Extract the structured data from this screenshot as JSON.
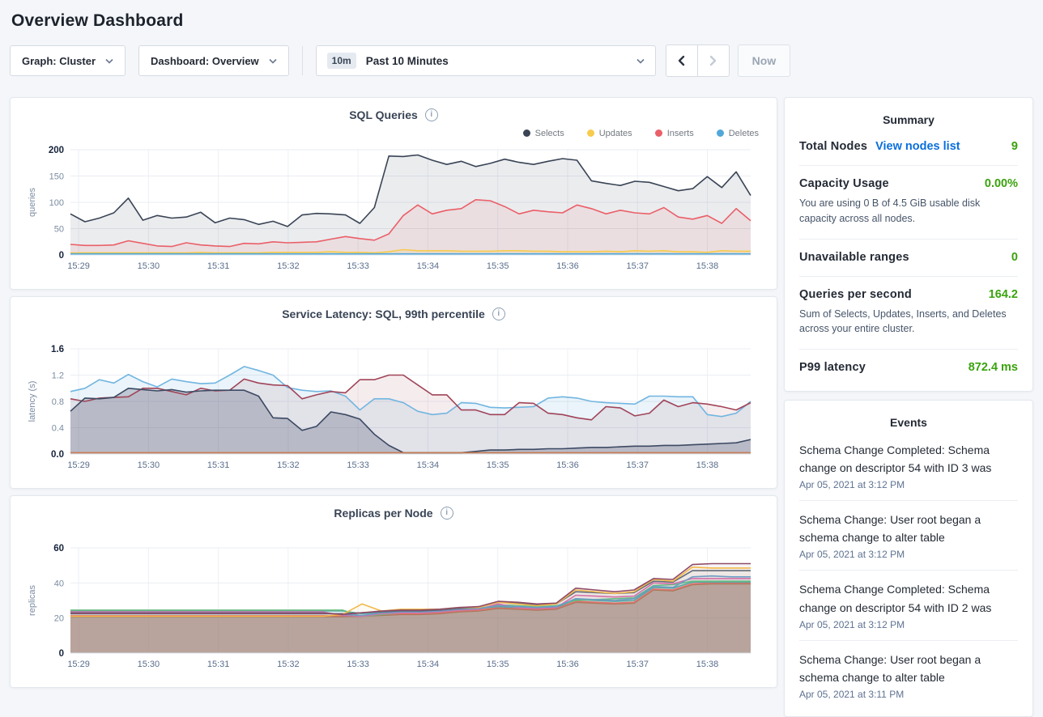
{
  "page_title": "Overview Dashboard",
  "toolbar": {
    "graph_dropdown": "Graph: Cluster",
    "dashboard_dropdown": "Dashboard: Overview",
    "time_badge": "10m",
    "time_label": "Past 10 Minutes",
    "now_label": "Now"
  },
  "colors": {
    "value_green": "#3aa30d",
    "link_blue": "#0a6fdb",
    "selects": "#394455",
    "updates": "#f7cb4d",
    "inserts": "#ea5f68",
    "deletes": "#52a7d9"
  },
  "summary": {
    "title": "Summary",
    "rows": [
      {
        "label": "Total Nodes",
        "link": "View nodes list",
        "value": "9"
      },
      {
        "label": "Capacity Usage",
        "value": "0.00%",
        "subtext": "You are using 0 B of 4.5 GiB usable disk capacity across all nodes."
      },
      {
        "label": "Unavailable ranges",
        "value": "0"
      },
      {
        "label": "Queries per second",
        "value": "164.2",
        "subtext": "Sum of Selects, Updates, Inserts, and Deletes across your entire cluster."
      },
      {
        "label": "P99 latency",
        "value": "872.4 ms"
      }
    ]
  },
  "events": {
    "title": "Events",
    "items": [
      {
        "message": "Schema Change Completed: Schema change on descriptor 54 with ID 3 was",
        "timestamp": "Apr 05, 2021 at 3:12 PM"
      },
      {
        "message": "Schema Change: User root began a schema change to alter table",
        "timestamp": "Apr 05, 2021 at 3:12 PM"
      },
      {
        "message": "Schema Change Completed: Schema change on descriptor 54 with ID 2 was",
        "timestamp": "Apr 05, 2021 at 3:12 PM"
      },
      {
        "message": "Schema Change: User root began a schema change to alter table",
        "timestamp": "Apr 05, 2021 at 3:11 PM"
      }
    ]
  },
  "chart_data": [
    {
      "type": "line",
      "title": "SQL Queries",
      "ylabel": "queries",
      "ylim": [
        0,
        200
      ],
      "yticks": [
        "0",
        "50",
        "100",
        "150",
        "200"
      ],
      "x_ticklabels": [
        "15:29",
        "15:30",
        "15:31",
        "15:32",
        "15:33",
        "15:34",
        "15:35",
        "15:36",
        "15:37",
        "15:38"
      ],
      "legend_position": "top-right",
      "grid": true,
      "series": [
        {
          "name": "Selects",
          "color": "#394455",
          "fill": "rgba(57,68,85,0.10)",
          "values": [
            78,
            63,
            70,
            80,
            108,
            66,
            75,
            70,
            72,
            81,
            61,
            70,
            67,
            58,
            64,
            54,
            76,
            79,
            78,
            76,
            60,
            90,
            188,
            187,
            190,
            180,
            172,
            178,
            168,
            174,
            182,
            176,
            172,
            178,
            183,
            180,
            141,
            136,
            132,
            140,
            138,
            130,
            122,
            126,
            149,
            128,
            158,
            113
          ]
        },
        {
          "name": "Inserts",
          "color": "#ea5f68",
          "fill": "rgba(234,95,104,0.10)",
          "values": [
            20,
            18,
            18,
            19,
            27,
            22,
            17,
            16,
            23,
            19,
            17,
            16,
            22,
            21,
            25,
            23,
            24,
            25,
            30,
            35,
            31,
            28,
            40,
            75,
            95,
            78,
            85,
            88,
            105,
            103,
            92,
            78,
            85,
            82,
            80,
            95,
            88,
            78,
            85,
            80,
            78,
            90,
            72,
            68,
            75,
            60,
            88,
            65
          ]
        },
        {
          "name": "Updates",
          "color": "#f7cb4d",
          "fill": "rgba(247,203,77,0.14)",
          "values": [
            4,
            4,
            4,
            4,
            4,
            4,
            4,
            4,
            4,
            5,
            4,
            4,
            4,
            4,
            5,
            5,
            5,
            5,
            6,
            5,
            5,
            4,
            6,
            10,
            8,
            8,
            8,
            7,
            7,
            7,
            8,
            8,
            7,
            7,
            6,
            6,
            6,
            7,
            6,
            8,
            7,
            8,
            6,
            6,
            5,
            8,
            7,
            7
          ]
        },
        {
          "name": "Deletes",
          "color": "#52a7d9",
          "fill": null,
          "values": [
            2,
            2,
            2,
            2,
            2,
            2,
            2,
            2,
            2,
            2,
            2,
            2,
            2,
            2,
            2,
            2,
            2,
            2,
            2,
            2,
            2,
            2,
            2,
            2,
            2,
            2,
            2,
            2,
            2,
            2,
            2,
            2,
            2,
            2,
            2,
            2,
            2,
            2,
            2,
            2,
            2,
            2,
            2,
            2,
            2,
            2,
            2,
            2
          ]
        }
      ],
      "legend": [
        "Selects",
        "Updates",
        "Inserts",
        "Deletes"
      ],
      "legend_colors": [
        "#394455",
        "#f7cb4d",
        "#ea5f68",
        "#52a7d9"
      ]
    },
    {
      "type": "line",
      "title": "Service Latency: SQL, 99th percentile",
      "ylabel": "latency (s)",
      "ylim": [
        0,
        1.6
      ],
      "yticks": [
        "0.0",
        "0.4",
        "0.8",
        "1.2",
        "1.6"
      ],
      "x_ticklabels": [
        "15:29",
        "15:30",
        "15:31",
        "15:32",
        "15:33",
        "15:34",
        "15:35",
        "15:36",
        "15:37",
        "15:38"
      ],
      "grid": true,
      "series": [
        {
          "color": "#71b5e0",
          "fill": "rgba(113,181,224,0.15)",
          "values": [
            0.95,
            1.0,
            1.13,
            1.08,
            1.21,
            1.1,
            1.02,
            1.14,
            1.1,
            1.07,
            1.08,
            1.2,
            1.33,
            1.27,
            1.2,
            1.01,
            0.97,
            0.95,
            0.96,
            0.88,
            0.67,
            0.84,
            0.84,
            0.78,
            0.65,
            0.6,
            0.62,
            0.78,
            0.77,
            0.71,
            0.7,
            0.71,
            0.72,
            0.85,
            0.87,
            0.85,
            0.8,
            0.78,
            0.77,
            0.76,
            0.88,
            0.88,
            0.87,
            0.87,
            0.6,
            0.57,
            0.62,
            0.8
          ]
        },
        {
          "color": "#a04458",
          "fill": "rgba(160,68,88,0.10)",
          "values": [
            0.84,
            0.8,
            0.85,
            0.86,
            0.87,
            1.0,
            1.0,
            0.95,
            0.9,
            1.0,
            0.96,
            0.97,
            1.14,
            1.08,
            1.05,
            1.04,
            0.84,
            0.9,
            0.95,
            0.93,
            1.13,
            1.13,
            1.2,
            1.2,
            1.05,
            0.9,
            0.9,
            0.67,
            0.67,
            0.6,
            0.6,
            0.78,
            0.77,
            0.62,
            0.6,
            0.55,
            0.52,
            0.72,
            0.7,
            0.58,
            0.62,
            0.82,
            0.72,
            0.78,
            0.76,
            0.72,
            0.67,
            0.78
          ]
        },
        {
          "color": "#3c4a63",
          "fill": "rgba(80,84,110,0.28)",
          "values": [
            0.65,
            0.85,
            0.84,
            0.86,
            1.0,
            0.98,
            0.96,
            0.98,
            0.94,
            0.96,
            0.97,
            0.97,
            0.97,
            0.88,
            0.55,
            0.54,
            0.36,
            0.42,
            0.64,
            0.6,
            0.53,
            0.3,
            0.13,
            0.02,
            0.02,
            0.02,
            0.02,
            0.02,
            0.04,
            0.06,
            0.06,
            0.07,
            0.07,
            0.08,
            0.08,
            0.09,
            0.1,
            0.1,
            0.11,
            0.12,
            0.12,
            0.13,
            0.13,
            0.14,
            0.15,
            0.16,
            0.17,
            0.22
          ]
        },
        {
          "color": "#c97b50",
          "fill": null,
          "values": [
            0.02,
            0.02,
            0.02,
            0.02,
            0.02,
            0.02,
            0.02,
            0.02,
            0.02,
            0.02,
            0.02,
            0.02,
            0.02,
            0.02,
            0.02,
            0.02,
            0.02,
            0.02,
            0.02,
            0.02,
            0.02,
            0.02,
            0.02,
            0.02,
            0.02,
            0.02,
            0.02,
            0.02,
            0.02,
            0.02,
            0.02,
            0.02,
            0.02,
            0.02,
            0.02,
            0.02,
            0.02,
            0.02,
            0.02,
            0.02,
            0.02,
            0.02,
            0.02,
            0.02,
            0.02,
            0.02,
            0.02,
            0.02
          ]
        }
      ]
    },
    {
      "type": "line",
      "title": "Replicas per Node",
      "ylabel": "replicas",
      "ylim": [
        0,
        60
      ],
      "yticks": [
        "0",
        "20",
        "40",
        "60"
      ],
      "x_ticklabels": [
        "15:29",
        "15:30",
        "15:31",
        "15:32",
        "15:33",
        "15:34",
        "15:35",
        "15:36",
        "15:37",
        "15:38"
      ],
      "grid": true,
      "series": [
        {
          "color": "#a8795a",
          "fill": "rgba(166,118,96,0.50)",
          "values": [
            20.8,
            20.8,
            20.8,
            20.8,
            20.8,
            20.8,
            20.8,
            20.8,
            20.8,
            20.8,
            20.8,
            20.8,
            20.8,
            20.8,
            20.8,
            21,
            21.5,
            22,
            22,
            22.5,
            23.5,
            24,
            25.5,
            25,
            24.5,
            25,
            29,
            28.5,
            28,
            28.5,
            36,
            35.5,
            39,
            39.5,
            39.5,
            39.5
          ]
        },
        {
          "color": "#e0726f",
          "fill": "rgba(224,114,111,0.06)",
          "values": [
            21.3,
            21.3,
            21.3,
            21.3,
            21.3,
            21.3,
            21.3,
            21.3,
            21.3,
            21.3,
            21.3,
            21.3,
            21.3,
            21.3,
            21.3,
            21.5,
            22,
            22.5,
            22.5,
            23,
            24,
            24.5,
            26,
            25.5,
            25,
            25.5,
            29.5,
            29,
            28.5,
            29,
            36.5,
            36,
            39.5,
            40,
            40,
            40
          ]
        },
        {
          "color": "#57a8a1",
          "fill": "rgba(87,168,161,0.06)",
          "values": [
            24,
            24,
            24,
            24,
            24,
            24,
            24,
            24,
            24,
            24,
            24,
            24,
            24,
            24,
            24,
            22.5,
            23.5,
            23.5,
            23.5,
            24,
            25,
            25.5,
            26.5,
            26,
            25.5,
            26,
            30.5,
            30,
            29.5,
            30,
            37.5,
            37,
            40.5,
            40.5,
            40.5,
            40.5
          ]
        },
        {
          "color": "#65bb83",
          "fill": "rgba(101,187,131,0.06)",
          "values": [
            24.5,
            24.5,
            24.5,
            24.5,
            24.5,
            24.5,
            24.5,
            24.5,
            24.5,
            24.5,
            24.5,
            24.5,
            24.5,
            24.5,
            24.5,
            21,
            22,
            23,
            23,
            23.5,
            24.5,
            25,
            27.5,
            27,
            26.5,
            27,
            30,
            30.5,
            31,
            31.5,
            38.5,
            39,
            41,
            41,
            41,
            41
          ]
        },
        {
          "color": "#d470a8",
          "fill": "rgba(212,112,168,0.06)",
          "values": [
            23.5,
            23.5,
            23.5,
            23.5,
            23.5,
            23.5,
            23.5,
            23.5,
            23.5,
            23.5,
            23.5,
            23.5,
            23.5,
            23.5,
            21.5,
            21,
            22.5,
            23,
            23,
            23.5,
            24.5,
            25,
            28,
            26,
            25.5,
            26,
            33,
            32.5,
            32,
            32.5,
            40,
            39.5,
            42.5,
            42.5,
            42.5,
            42.5
          ]
        },
        {
          "color": "#6c9dc4",
          "fill": "rgba(108,157,196,0.06)",
          "values": [
            23,
            23,
            23,
            23,
            23,
            23,
            23,
            23,
            23,
            23,
            23,
            23,
            23,
            23,
            22,
            21.5,
            23,
            23.5,
            23.5,
            24,
            25,
            25.5,
            27,
            26.5,
            26,
            26.5,
            31,
            30.5,
            30,
            31,
            38,
            37.5,
            43.5,
            44,
            43.5,
            43.5
          ]
        },
        {
          "color": "#5f6b7a",
          "fill": "rgba(95,107,122,0.06)",
          "values": [
            22.5,
            22.5,
            22.5,
            22.5,
            22.5,
            22.5,
            22.5,
            22.5,
            22.5,
            22.5,
            22.5,
            22.5,
            22.5,
            22.5,
            22.5,
            23,
            23.5,
            24,
            24,
            24.5,
            25.5,
            26,
            29,
            28.5,
            27.5,
            28,
            35,
            34.5,
            34,
            34.5,
            41,
            40.5,
            47,
            47,
            47,
            47
          ]
        },
        {
          "color": "#f2b84b",
          "fill": "rgba(242,184,75,0.06)",
          "values": [
            21,
            21,
            21,
            21,
            21,
            21,
            21,
            21,
            21,
            21,
            21,
            21,
            21,
            21,
            22,
            28,
            24,
            25,
            25,
            25,
            26,
            26,
            29,
            28,
            27,
            28,
            36,
            35,
            34,
            35,
            42,
            41,
            49,
            48.5,
            48.5,
            48.5
          ]
        },
        {
          "color": "#8e4a67",
          "fill": "rgba(142,74,103,0.06)",
          "values": [
            22.8,
            22.8,
            22.8,
            22.8,
            22.8,
            22.8,
            22.8,
            22.8,
            22.8,
            22.8,
            22.8,
            22.8,
            22.8,
            22.8,
            22,
            23,
            24,
            24.5,
            24.5,
            25,
            26,
            26.5,
            29.5,
            29,
            28,
            28.5,
            37,
            36,
            35,
            36,
            42.5,
            42,
            50.5,
            51,
            51,
            51
          ]
        }
      ]
    }
  ]
}
